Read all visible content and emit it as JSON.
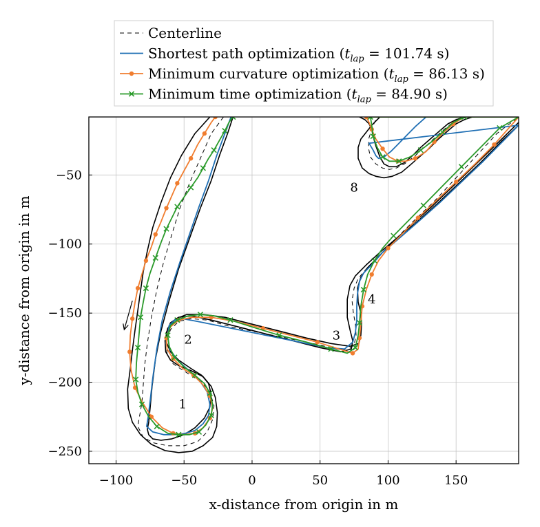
{
  "chart_data": {
    "type": "line",
    "title": "",
    "xlabel": "x-distance from origin in m",
    "ylabel": "y-distance from origin in m",
    "xlim": [
      -120,
      196
    ],
    "ylim": [
      -259,
      -8
    ],
    "xticks": [
      -100,
      -50,
      0,
      50,
      100,
      150
    ],
    "yticks": [
      -50,
      -100,
      -150,
      -200,
      -250
    ],
    "xtick_labels": [
      "−100",
      "−50",
      "0",
      "50",
      "100",
      "150"
    ],
    "ytick_labels": [
      "−50",
      "−100",
      "−150",
      "−200",
      "−250"
    ],
    "grid": true,
    "legend_position": "top-center-outside",
    "corner_labels": [
      {
        "text": "1",
        "x": -51,
        "y": -216
      },
      {
        "text": "2",
        "x": -47,
        "y": -169
      },
      {
        "text": "3",
        "x": 62,
        "y": -166
      },
      {
        "text": "4",
        "x": 88,
        "y": -140
      },
      {
        "text": "8",
        "x": 75,
        "y": -59
      }
    ],
    "direction_arrow": {
      "from": [
        -88,
        -141
      ],
      "to": [
        -94,
        -162
      ]
    },
    "track_boundaries": [
      {
        "x": [
          -31,
          -42,
          -52,
          -60,
          -67,
          -73,
          -77,
          -80,
          -82,
          -84,
          -86,
          -88,
          -89.5,
          -91.5,
          -91,
          -88,
          -82,
          -74,
          -64,
          -54,
          -44,
          -36,
          -29,
          -26,
          -25.5,
          -27,
          -30,
          -36,
          -44,
          -54,
          -60,
          -63.5,
          -64,
          -62,
          -56,
          -48,
          -36,
          -20,
          0,
          20,
          40,
          58,
          72,
          78.5,
          80,
          80.5,
          80,
          78,
          77.5,
          80,
          85,
          92,
          102,
          116,
          132,
          150,
          170,
          196
        ],
        "y": [
          -8,
          -20,
          -36,
          -52,
          -70,
          -88,
          -105,
          -120,
          -134,
          -148,
          -162,
          -177,
          -190,
          -205,
          -219,
          -229,
          -238,
          -245,
          -249.5,
          -251,
          -250,
          -246,
          -240,
          -232,
          -222,
          -211,
          -203,
          -196,
          -192,
          -188,
          -184,
          -178,
          -170,
          -161,
          -154,
          -151,
          -151,
          -153,
          -158,
          -163,
          -168,
          -172,
          -174,
          -172,
          -166,
          -158,
          -150,
          -142,
          -132,
          -124,
          -117,
          -110,
          -100,
          -87,
          -73,
          -56,
          -37,
          -12
        ]
      },
      {
        "x": [
          -14,
          -18,
          -24,
          -30,
          -38,
          -46,
          -54,
          -61,
          -67,
          -71,
          -73.5,
          -75,
          -76,
          -77,
          -76,
          -73,
          -67,
          -59,
          -50,
          -42,
          -35,
          -31,
          -30,
          -32,
          -37,
          -45,
          -54,
          -60,
          -63,
          -63,
          -60,
          -54,
          -44,
          -30,
          -10,
          10,
          30,
          50,
          65,
          73,
          74,
          72,
          70,
          70,
          72,
          76,
          84,
          94,
          106,
          120,
          136,
          152,
          168,
          184,
          196
        ],
        "y": [
          -8,
          -20,
          -36,
          -54,
          -74,
          -96,
          -118,
          -141,
          -163,
          -183,
          -203,
          -219,
          -229,
          -234,
          -238,
          -241,
          -242,
          -241,
          -238,
          -233,
          -226,
          -218,
          -209,
          -201,
          -195,
          -190,
          -184,
          -178,
          -171,
          -164,
          -157,
          -153,
          -152,
          -155,
          -160,
          -165,
          -170,
          -175,
          -178,
          -176,
          -170,
          -162,
          -153,
          -140,
          -130,
          -123,
          -115,
          -106,
          -96,
          -85,
          -71,
          -56,
          -41,
          -25,
          -14
        ]
      },
      {
        "x": [
          79,
          83,
          86,
          88,
          89,
          91,
          94,
          97,
          101,
          106,
          112,
          118,
          124,
          131,
          138,
          144,
          150,
          156,
          164
        ],
        "y": [
          -8,
          -10,
          -13,
          -17,
          -22,
          -29,
          -37,
          -42,
          -44,
          -44,
          -41,
          -36,
          -30,
          -24,
          -18,
          -13,
          -10,
          -8,
          -8
        ]
      },
      {
        "x": [
          94,
          92,
          88,
          84,
          80,
          78,
          78,
          81,
          86,
          91,
          97,
          103,
          110,
          116,
          123,
          130,
          137,
          144,
          150,
          156,
          162
        ],
        "y": [
          -8,
          -10,
          -14,
          -19,
          -24,
          -30,
          -38,
          -45,
          -49,
          -51,
          -52,
          -51,
          -48,
          -43,
          -37,
          -31,
          -24,
          -18,
          -13,
          -10,
          -8
        ]
      }
    ],
    "series": [
      {
        "name": "Centerline",
        "color": "#000000",
        "dash": "6,5",
        "marker": "none",
        "x": [
          -21,
          -30,
          -38,
          -46,
          -53,
          -59,
          -65,
          -70,
          -74,
          -77,
          -79,
          -80,
          -81,
          -83,
          -84,
          -80,
          -72,
          -62,
          -50,
          -40,
          -33,
          -29,
          -28,
          -31,
          -37,
          -45,
          -53,
          -59,
          -62.5,
          -63,
          -60,
          -54,
          -45,
          -33,
          -15,
          5,
          25,
          45,
          62,
          70,
          75,
          76.5,
          76,
          74.5,
          73.5,
          75,
          78,
          84,
          92,
          104,
          118,
          134,
          150,
          166,
          180,
          196,
          92,
          90,
          88,
          86,
          85.5,
          87,
          91,
          96,
          101,
          106,
          112,
          120,
          130,
          140,
          150,
          160
        ],
        "y": [
          -8,
          -20,
          -38,
          -56,
          -74,
          -93,
          -113,
          -133,
          -153,
          -172,
          -188,
          -202,
          -215,
          -226,
          -232,
          -240,
          -244,
          -246,
          -246,
          -243,
          -236,
          -227,
          -217,
          -207,
          -200,
          -195,
          -190,
          -186,
          -179,
          -171,
          -162,
          -156,
          -154,
          -155,
          -160,
          -164,
          -168,
          -172,
          -176,
          -177,
          -173,
          -166,
          -158,
          -150,
          -141,
          -132,
          -125,
          -118,
          -110,
          -98,
          -84,
          -69,
          -52,
          -35,
          -20,
          -8,
          -8,
          -12,
          -17,
          -23,
          -30,
          -37,
          -42,
          -45,
          -46,
          -45,
          -42,
          -36,
          -27,
          -18,
          -10,
          -8
        ]
      },
      {
        "name": "Shortest path optimization",
        "color": "#1f6fb4",
        "dash": "",
        "marker": "none",
        "x": [
          -15.5,
          -20,
          -26,
          -32,
          -39,
          -46,
          -53,
          -60,
          -66,
          -70,
          -73,
          -75,
          -76.5,
          -77.5,
          -73,
          -65,
          -57,
          -49,
          -42,
          -36,
          -32,
          -31,
          -33,
          -39,
          -47,
          -55,
          -60.5,
          -62,
          -61,
          -57,
          -51,
          -40,
          -25,
          -5,
          15,
          35,
          55,
          68,
          74,
          76,
          77,
          77,
          77.5,
          79,
          82,
          88,
          96,
          108,
          122,
          138,
          154,
          170,
          186,
          196,
          86,
          89,
          91,
          93,
          97,
          102,
          107,
          113,
          120,
          128,
          136,
          144,
          150
        ],
        "y": [
          -8,
          -20,
          -36,
          -54,
          -73,
          -93,
          -113,
          -134,
          -155,
          -176,
          -197,
          -214,
          -226,
          -232,
          -236,
          -238,
          -238,
          -237,
          -235,
          -230,
          -224,
          -216,
          -207,
          -198,
          -191,
          -184,
          -176,
          -167,
          -159,
          -155,
          -154,
          -156,
          -159,
          -163,
          -167,
          -171,
          -175,
          -176,
          -171,
          -164,
          -155,
          -145,
          -136,
          -127,
          -121,
          -115,
          -106,
          -96,
          -84,
          -70,
          -55,
          -40,
          -24,
          -14,
          -27,
          -32,
          -36,
          -38,
          -37,
          -33,
          -28,
          -22,
          -15,
          -8,
          -8,
          -8,
          -8
        ]
      },
      {
        "name": "Minimum curvature optimization",
        "color": "#f07d2f",
        "dash": "",
        "marker": "o",
        "x": [
          -27,
          -30,
          -35,
          -40,
          -45,
          -50,
          -55,
          -59,
          -63,
          -67,
          -71,
          -74,
          -78,
          -81,
          -84,
          -86,
          -88,
          -89.5,
          -90,
          -89,
          -86,
          -81,
          -74,
          -66,
          -58,
          -50,
          -42,
          -36,
          -31,
          -29,
          -31,
          -36,
          -43,
          -51,
          -58,
          -62.5,
          -63,
          -60,
          -54,
          -44,
          -30,
          -12,
          8,
          28,
          48,
          64,
          74,
          78,
          79,
          80,
          81,
          84,
          88,
          93,
          100,
          110,
          122,
          136,
          150,
          164,
          178,
          196,
          84,
          86,
          88,
          91,
          96,
          101,
          107,
          113,
          120,
          128,
          134,
          140,
          148,
          156
        ],
        "y": [
          -8,
          -12,
          -20,
          -28,
          -38,
          -47,
          -56,
          -65,
          -74,
          -84,
          -93,
          -102,
          -112,
          -122,
          -132,
          -142,
          -154,
          -166,
          -178,
          -191,
          -204,
          -214,
          -225,
          -233,
          -237,
          -238,
          -237,
          -233,
          -226,
          -219,
          -210,
          -202,
          -195,
          -190,
          -183,
          -176,
          -168,
          -160,
          -155,
          -153,
          -153,
          -156,
          -161,
          -166,
          -171,
          -176,
          -179,
          -176,
          -168,
          -157,
          -145,
          -133,
          -122,
          -112,
          -103,
          -93,
          -81,
          -68,
          -55,
          -42,
          -28,
          -8,
          -8,
          -12,
          -17,
          -24,
          -31,
          -37,
          -40,
          -40,
          -38,
          -33,
          -26,
          -20,
          -13,
          -8
        ]
      },
      {
        "name": "Minimum time optimization",
        "color": "#2a9a2a",
        "dash": "",
        "marker": "x",
        "x": [
          -14,
          -17,
          -20,
          -24,
          -28,
          -32,
          -36,
          -40,
          -45,
          -50,
          -55,
          -59,
          -63,
          -67,
          -71,
          -75,
          -78,
          -80,
          -82,
          -83,
          -84,
          -85,
          -85.5,
          -84,
          -81,
          -76,
          -70,
          -62,
          -54,
          -46,
          -39,
          -34,
          -30,
          -29,
          -31,
          -35,
          -42,
          -50,
          -57,
          -61,
          -62,
          -60,
          -55,
          -47,
          -38,
          -28,
          -16,
          0,
          20,
          40,
          58,
          70,
          76,
          78,
          79,
          80,
          82,
          85,
          90,
          96,
          104,
          114,
          126,
          140,
          154,
          168,
          182,
          196,
          87,
          88,
          89,
          92,
          96,
          101,
          108,
          116,
          124,
          132,
          140,
          148,
          156
        ],
        "y": [
          -8,
          -12,
          -18,
          -25,
          -32,
          -38,
          -45,
          -52,
          -59,
          -66,
          -73,
          -81,
          -89,
          -99,
          -110,
          -121,
          -132,
          -142,
          -153,
          -164,
          -175,
          -186,
          -198,
          -207,
          -216,
          -225,
          -232,
          -237,
          -238,
          -238,
          -236,
          -231,
          -224,
          -216,
          -208,
          -201,
          -195,
          -189,
          -182,
          -174,
          -166,
          -159,
          -155,
          -152,
          -151,
          -152,
          -155,
          -160,
          -166,
          -171,
          -176,
          -179,
          -175,
          -166,
          -157,
          -145,
          -133,
          -122,
          -112,
          -103,
          -94,
          -84,
          -72,
          -58,
          -44,
          -30,
          -16,
          -8,
          -8,
          -14,
          -22,
          -30,
          -37,
          -40,
          -40,
          -37,
          -32,
          -26,
          -19,
          -12,
          -8
        ]
      }
    ]
  }
}
